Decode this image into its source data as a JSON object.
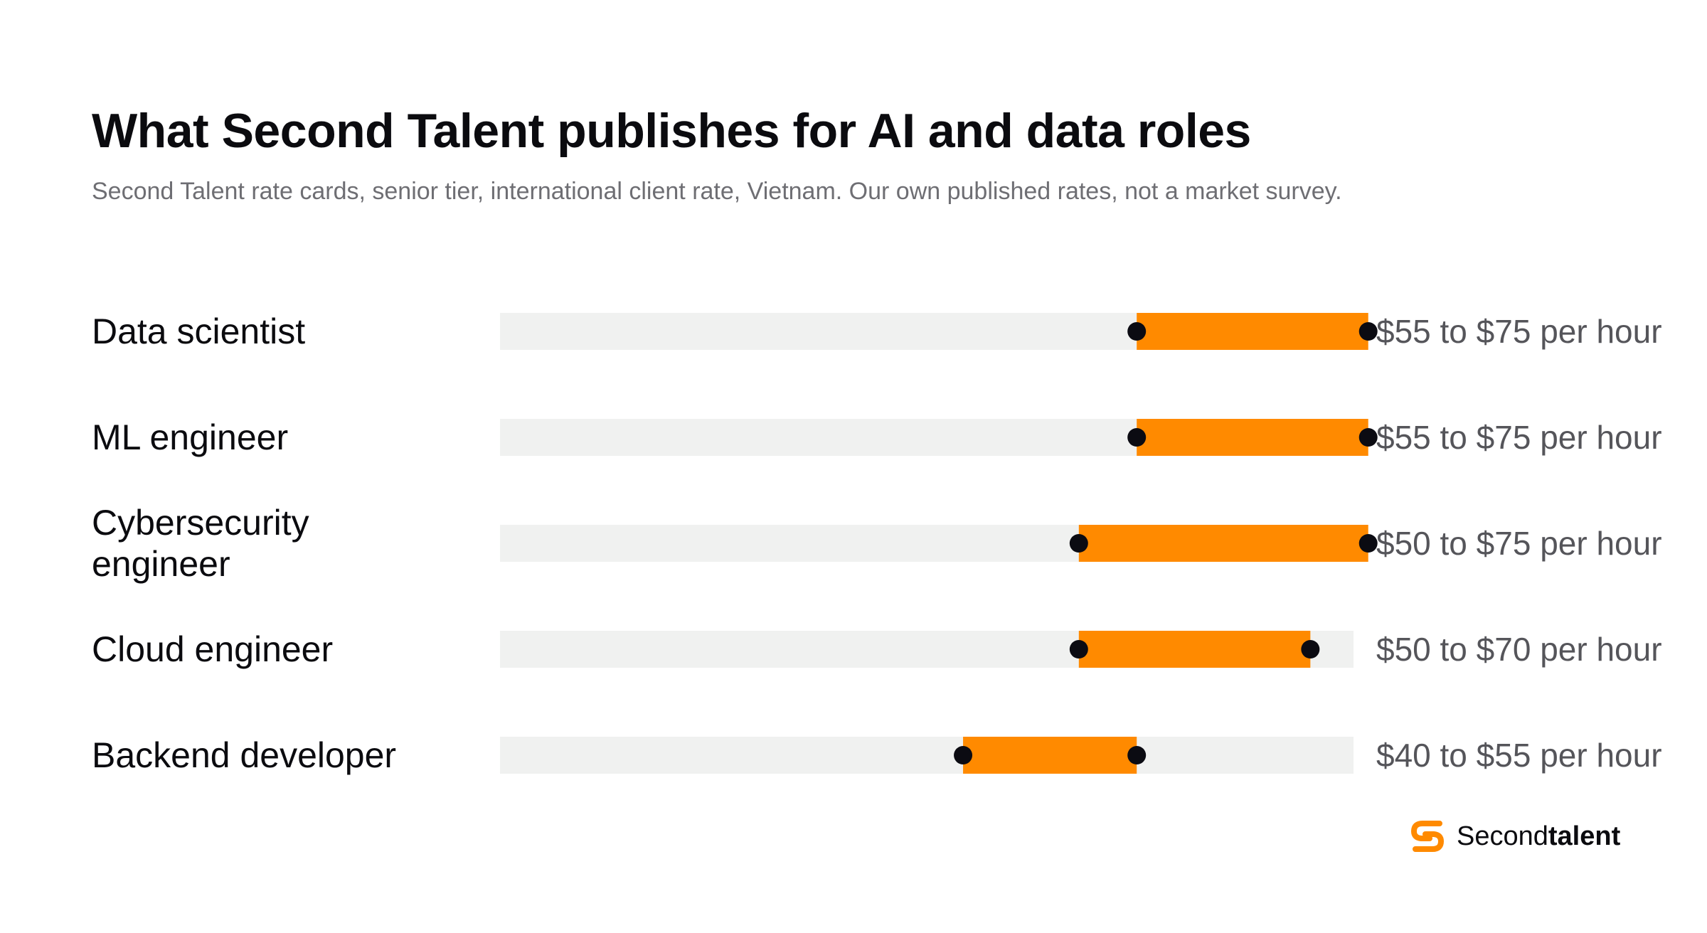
{
  "title": "What Second Talent publishes for AI and data roles",
  "subtitle": "Second Talent rate cards, senior tier, international client rate, Vietnam. Our own published rates, not a market survey.",
  "chart_data": {
    "type": "range-bar",
    "unit": "USD per hour",
    "xlim": [
      0,
      76
    ],
    "rows": [
      {
        "role": [
          "Data scientist"
        ],
        "low": 55,
        "high": 75,
        "label": "$55 to $75 per hour"
      },
      {
        "role": [
          "ML engineer"
        ],
        "low": 55,
        "high": 75,
        "label": "$55 to $75 per hour"
      },
      {
        "role": [
          "Cybersecurity",
          "engineer"
        ],
        "low": 50,
        "high": 75,
        "label": "$50 to $75 per hour"
      },
      {
        "role": [
          "Cloud engineer"
        ],
        "low": 50,
        "high": 70,
        "label": "$50 to $70 per hour"
      },
      {
        "role": [
          "Backend developer"
        ],
        "low": 40,
        "high": 55,
        "label": "$40 to $55 per hour"
      }
    ],
    "colors": {
      "track": "#f0f1f0",
      "range": "#ff8a00",
      "endpoint": "#0b0b12"
    }
  },
  "logo": {
    "text_regular": "Second",
    "text_bold": "talent",
    "icon": "second-talent-logo-icon",
    "color": "#ff8a00"
  }
}
